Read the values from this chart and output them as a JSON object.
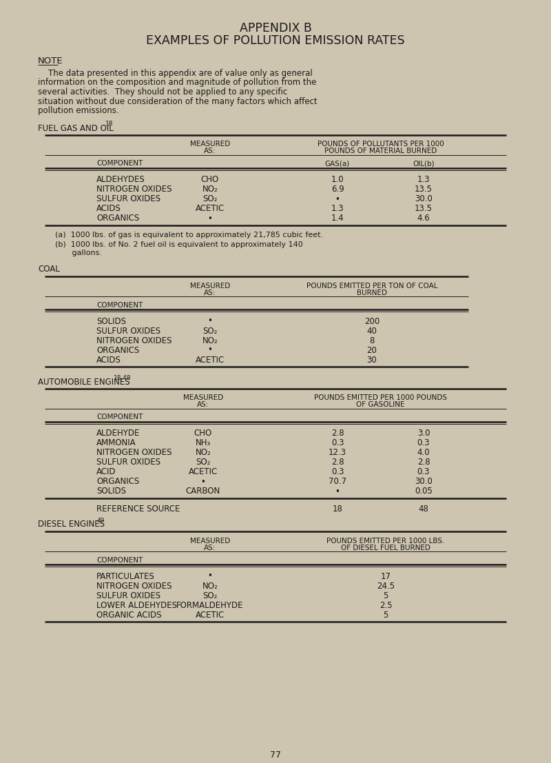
{
  "bg_color": "#cec5b0",
  "text_color": "#1a1a1a",
  "title1": "APPENDIX B",
  "title2": "EXAMPLES OF POLLUTION EMISSION RATES",
  "note_head": "NOTE",
  "note_lines": [
    "    The data presented in this appendix are of value only as general",
    "information on the composition and magnitude of pollution from the",
    "several activities.  They should not be applied to any specific",
    "situation without due consideration of the many factors which affect",
    "pollution emissions."
  ],
  "section1_head": "FUEL GAS AND OIL",
  "section1_sup": "18",
  "t1_hdr_measured": "MEASURED",
  "t1_hdr_as": "AS:",
  "t1_hdr_top": "POUNDS OF POLLUTANTS PER 1000",
  "t1_hdr_mid": "POUNDS OF MATERIAL BURNED",
  "t1_hdr_gasa": "GAS(a)",
  "t1_hdr_oilb": "OIL(b)",
  "t1_col_label": "COMPONENT",
  "t1_rows": [
    [
      "ALDEHYDES",
      "CHO",
      "1.0",
      "1.3"
    ],
    [
      "NITROGEN OXIDES",
      "NO₂",
      "6.9",
      "13.5"
    ],
    [
      "SULFUR OXIDES",
      "SO₂",
      "•",
      "30.0"
    ],
    [
      "ACIDS",
      "ACETIC",
      "1.3",
      "13.5"
    ],
    [
      "ORGANICS",
      "•",
      "1.4",
      "4.6"
    ]
  ],
  "t1_fn_a": "(a)  1000 lbs. of gas is equivalent to approximately 21,785 cubic feet.",
  "t1_fn_b1": "(b)  1000 lbs. of No. 2 fuel oil is equivalent to approximately 140",
  "t1_fn_b2": "       gallons.",
  "section2_head": "COAL",
  "t2_hdr_measured": "MEASURED",
  "t2_hdr_as": "AS:",
  "t2_hdr_top": "POUNDS EMITTED PER TON OF COAL",
  "t2_hdr_bot": "BURNED",
  "t2_col_label": "COMPONENT",
  "t2_rows": [
    [
      "SOLIDS",
      "•",
      "200"
    ],
    [
      "SULFUR OXIDES",
      "SO₂",
      "40"
    ],
    [
      "NITROGEN OXIDES",
      "NO₂",
      "8"
    ],
    [
      "ORGANICS",
      "•",
      "20"
    ],
    [
      "ACIDS",
      "ACETIC",
      "30"
    ]
  ],
  "section3_head": "AUTOMOBILE ENGINES",
  "section3_sup": "18,48",
  "t3_hdr_measured": "MEASURED",
  "t3_hdr_as": "AS:",
  "t3_hdr_top": "POUNDS EMITTED PER 1000 POUNDS",
  "t3_hdr_bot": "OF GASOLINE",
  "t3_col_label": "COMPONENT",
  "t3_rows": [
    [
      "ALDEHYDE",
      "CHO",
      "2.8",
      "3.0"
    ],
    [
      "AMMONIA",
      "NH₃",
      "0.3",
      "0.3"
    ],
    [
      "NITROGEN OXIDES",
      "NO₂",
      "12.3",
      "4.0"
    ],
    [
      "SULFUR OXIDES",
      "SO₂",
      "2.8",
      "2.8"
    ],
    [
      "ACID",
      "ACETIC",
      "0.3",
      "0.3"
    ],
    [
      "ORGANICS",
      "•",
      "70.7",
      "30.0"
    ],
    [
      "SOLIDS",
      "CARBON",
      "•",
      "0.05"
    ]
  ],
  "t3_ref_label": "REFERENCE SOURCE",
  "t3_ref_v1": "18",
  "t3_ref_v2": "48",
  "section4_head": "DIESEL ENGINES",
  "section4_sup": "49",
  "t4_hdr_measured": "MEASURED",
  "t4_hdr_as": "AS:",
  "t4_hdr_top": "POUNDS EMITTED PER 1000 LBS.",
  "t4_hdr_bot": "OF DIESEL FUEL BURNED",
  "t4_col_label": "COMPONENT",
  "t4_rows": [
    [
      "PARTICULATES",
      "•",
      "17"
    ],
    [
      "NITROGEN OXIDES",
      "NO₂",
      "24.5"
    ],
    [
      "SULFUR OXIDES",
      "SO₂",
      "5"
    ],
    [
      "LOWER ALDEHYDES",
      "FORMALDEHYDE",
      "2.5"
    ],
    [
      "ORGANIC ACIDS",
      "ACETIC",
      "5"
    ]
  ],
  "page_num": "77"
}
